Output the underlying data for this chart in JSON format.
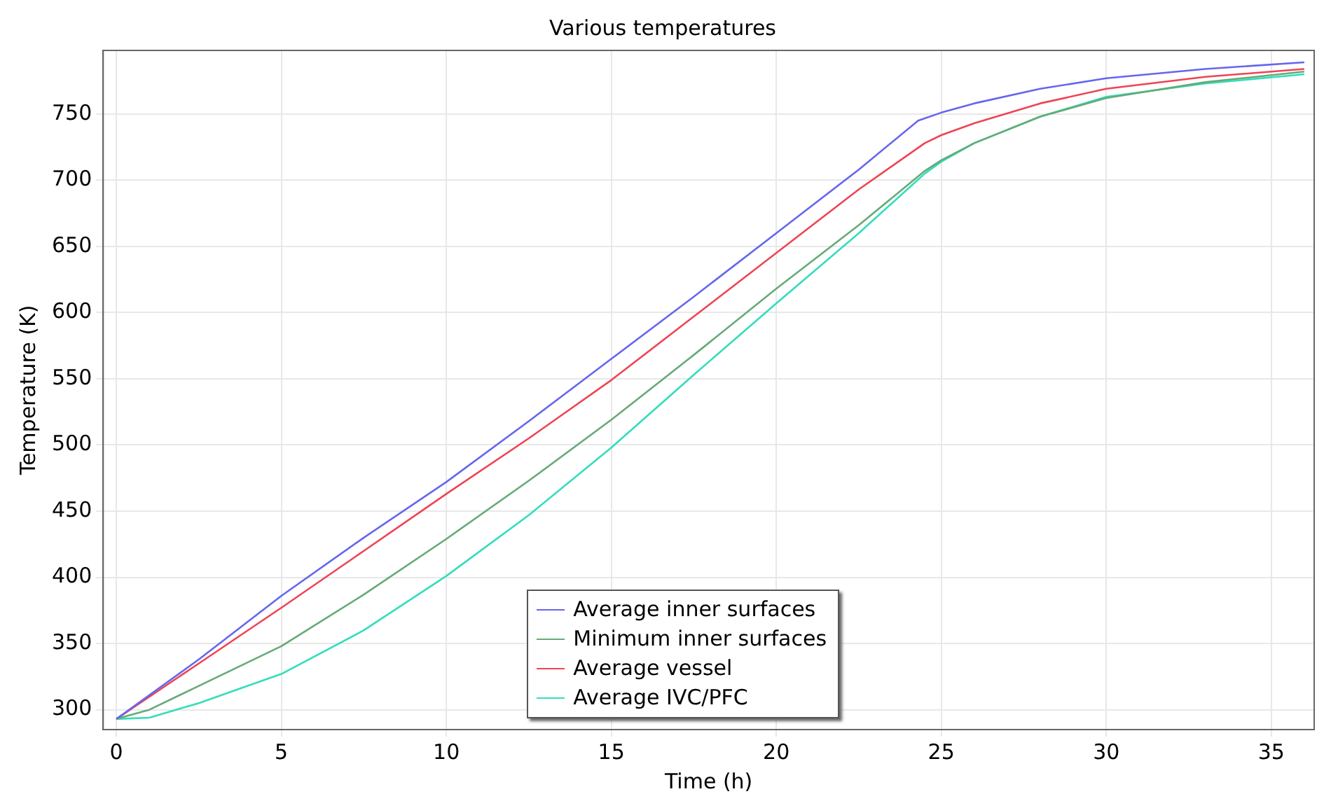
{
  "chart_data": {
    "type": "line",
    "title": "Various temperatures",
    "xlabel": "Time (h)",
    "ylabel": "Temperature (K)",
    "xlim": [
      -0.4,
      36.3
    ],
    "ylim": [
      285,
      798
    ],
    "xticks": [
      0,
      5,
      10,
      15,
      20,
      25,
      30,
      35
    ],
    "yticks": [
      300,
      350,
      400,
      450,
      500,
      550,
      600,
      650,
      700,
      750
    ],
    "grid": true,
    "legend": "bottom",
    "marker": "none",
    "line_style": "solid",
    "series": [
      {
        "name": "Average inner surfaces",
        "color": "#6666ee",
        "x": [
          0,
          2.5,
          5,
          7.5,
          10,
          12.5,
          15,
          17.5,
          20,
          22.5,
          24.3,
          25,
          26,
          28,
          30,
          33,
          36
        ],
        "values": [
          293,
          338,
          386,
          430,
          472,
          518,
          565,
          612,
          660,
          708,
          745,
          751,
          758,
          769,
          777,
          784,
          789
        ]
      },
      {
        "name": "Minimum inner surfaces",
        "color": "#66aa77",
        "x": [
          0,
          1,
          2.5,
          5,
          7.5,
          10,
          12.5,
          15,
          17.5,
          20,
          22.5,
          24.5,
          25,
          26,
          28,
          30,
          33,
          36
        ],
        "values": [
          293,
          300,
          318,
          348,
          387,
          429,
          473,
          519,
          568,
          618,
          666,
          707,
          715,
          728,
          748,
          762,
          774,
          782
        ]
      },
      {
        "name": "Average vessel",
        "color": "#ee4455",
        "x": [
          0,
          2.5,
          5,
          7.5,
          10,
          12.5,
          15,
          17.5,
          20,
          22.5,
          24.5,
          25,
          26,
          28,
          30,
          33,
          36
        ],
        "values": [
          293,
          335,
          377,
          420,
          463,
          505,
          549,
          597,
          645,
          693,
          728,
          734,
          743,
          758,
          769,
          778,
          784
        ]
      },
      {
        "name": "Average IVC/PFC",
        "color": "#33ddbb",
        "x": [
          0,
          1,
          2.5,
          5,
          7.5,
          10,
          12.5,
          15,
          17.5,
          20,
          22.5,
          24.5,
          25,
          26,
          28,
          30,
          33,
          36
        ],
        "values": [
          293,
          294,
          305,
          327,
          360,
          401,
          447,
          498,
          553,
          607,
          660,
          705,
          714,
          728,
          748,
          763,
          773,
          780
        ]
      }
    ]
  }
}
